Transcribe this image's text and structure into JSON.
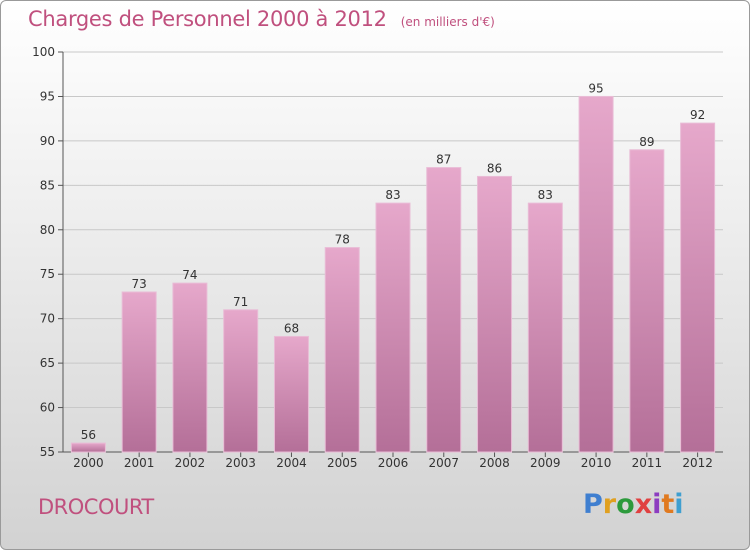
{
  "title": "Charges de Personnel 2000 à 2012",
  "subtitle": "(en milliers d'€)",
  "commune": "DROCOURT",
  "logo": {
    "letters": [
      "P",
      "r",
      "o",
      "x",
      "i",
      "t",
      "i"
    ],
    "colors": [
      "#3f7fd0",
      "#e0a020",
      "#2c9a3c",
      "#e04040",
      "#8c3cc0",
      "#e07a20",
      "#3f9fd0"
    ]
  },
  "colors": {
    "bar_top": "#e6a8cb",
    "bar_bottom": "#b46f98",
    "text": "#c0507e"
  },
  "chart_data": {
    "type": "bar",
    "title": "Charges de Personnel 2000 à 2012",
    "subtitle": "(en milliers d'€)",
    "categories": [
      "2000",
      "2001",
      "2002",
      "2003",
      "2004",
      "2005",
      "2006",
      "2007",
      "2008",
      "2009",
      "2010",
      "2011",
      "2012"
    ],
    "values": [
      56,
      73,
      74,
      71,
      68,
      78,
      83,
      87,
      86,
      83,
      95,
      89,
      92
    ],
    "ylim": [
      55,
      100
    ],
    "yticks": [
      55,
      60,
      65,
      70,
      75,
      80,
      85,
      90,
      95,
      100
    ],
    "grid": true
  }
}
